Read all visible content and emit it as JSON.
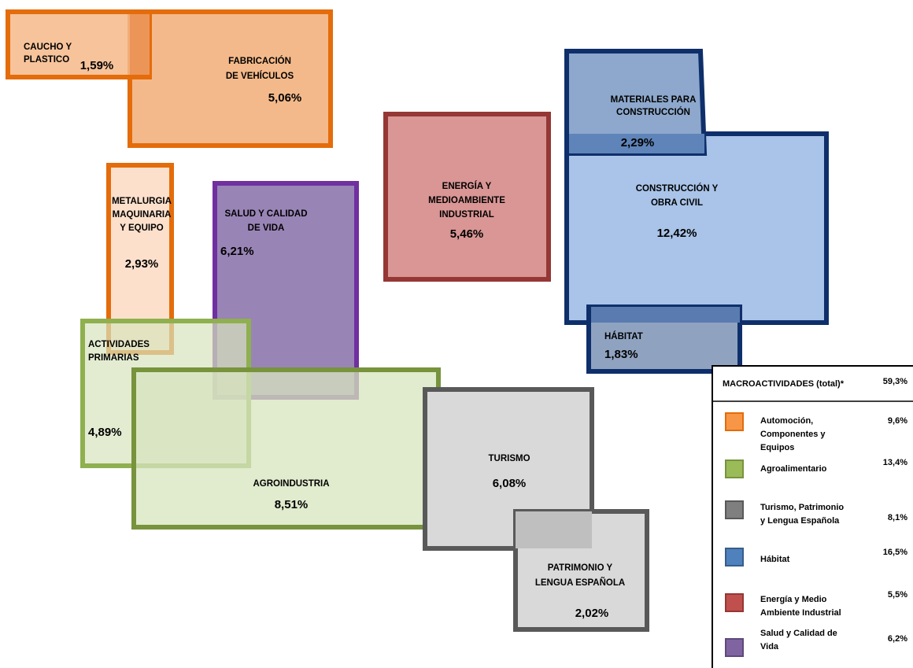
{
  "boxes": [
    {
      "label": [
        "CAUCHO Y",
        "PLASTICO"
      ],
      "value": "1,59%"
    },
    {
      "label": [
        "FABRICACIÓN",
        "DE VEHÍCULOS"
      ],
      "value": "5,06%"
    },
    {
      "label": [
        "METALURGIA",
        "MAQUINARIA",
        "Y EQUIPO"
      ],
      "value": "2,93%"
    },
    {
      "label": [
        "SALUD Y CALIDAD",
        "DE VIDA"
      ],
      "value": "6,21%"
    },
    {
      "label": [
        "ACTIVIDADES",
        "PRIMARIAS"
      ],
      "value": "4,89%"
    },
    {
      "label": [
        "AGROINDUSTRIA"
      ],
      "value": "8,51%"
    },
    {
      "label": [
        "ENERGÍA Y",
        "MEDIOAMBIENTE",
        "INDUSTRIAL"
      ],
      "value": "5,46%"
    },
    {
      "label": [
        "MATERIALES PARA",
        "CONSTRUCCIÓN"
      ],
      "value": "2,29%"
    },
    {
      "label": [
        "CONSTRUCCIÓN Y",
        "OBRA CIVIL"
      ],
      "value": "12,42%"
    },
    {
      "label": [
        "HÁBITAT"
      ],
      "value": "1,83%"
    },
    {
      "label": [
        "TURISMO"
      ],
      "value": "6,08%"
    },
    {
      "label": [
        "PATRIMONIO Y",
        "LENGUA ESPAÑOLA"
      ],
      "value": "2,02%"
    }
  ],
  "legend": {
    "title": "MACROACTIVIDADES (total)*",
    "total": "59,3%",
    "items": [
      {
        "name": [
          "Automoción,",
          "Componentes y",
          "Equipos"
        ],
        "value": "9,6%"
      },
      {
        "name": [
          "Agroalimentario"
        ],
        "value": "13,4%"
      },
      {
        "name": [
          "Turismo, Patrimonio",
          "y Lengua Española"
        ],
        "value": "8,1%"
      },
      {
        "name": [
          "Hábitat"
        ],
        "value": "16,5%"
      },
      {
        "name": [
          "Energía y Medio",
          "Ambiente Industrial"
        ],
        "value": "5,5%"
      },
      {
        "name": [
          "Salud y Calidad de",
          "Vida"
        ],
        "value": "6,2%"
      }
    ]
  }
}
